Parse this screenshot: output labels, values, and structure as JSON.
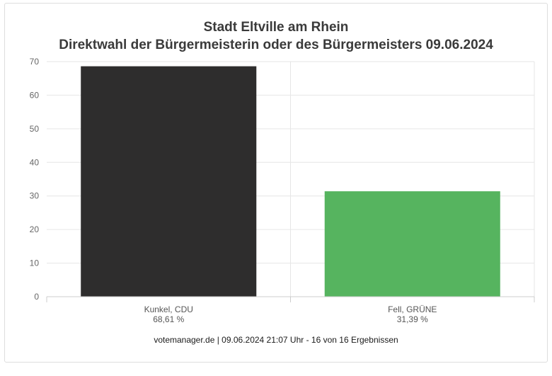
{
  "chart_data": {
    "type": "bar",
    "title_line1": "Stadt Eltville am Rhein",
    "title_line2": "Direktwahl der Bürgermeisterin oder des Bürgermeisters 09.06.2024",
    "categories": [
      "Kunkel, CDU",
      "Fell, GRÜNE"
    ],
    "value_labels": [
      "68,61 %",
      "31,39 %"
    ],
    "values": [
      68.61,
      31.39
    ],
    "colors": [
      "#2e2d2d",
      "#56b45f"
    ],
    "ylim": [
      0,
      70
    ],
    "yticks": [
      0,
      10,
      20,
      30,
      40,
      50,
      60,
      70
    ],
    "grid": true,
    "xlabel": "",
    "ylabel": ""
  },
  "footer": "votemanager.de | 09.06.2024 21:07 Uhr - 16 von 16 Ergebnissen"
}
